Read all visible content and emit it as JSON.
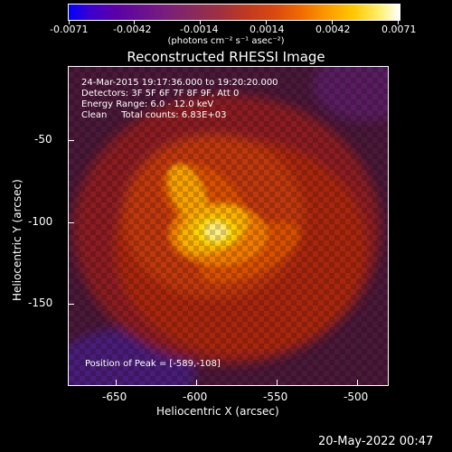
{
  "colorbar": {
    "tick_labels": [
      "-0.0071",
      "-0.0042",
      "-0.0014",
      "0.0014",
      "0.0042",
      "0.0071"
    ],
    "units_label": "(photons cm⁻² s⁻¹ asec⁻²)"
  },
  "title": "Reconstructed RHESSI Image",
  "annotations": {
    "time": "24-Mar-2015 19:17:36.000 to 19:20:20.000",
    "detectors": "Detectors: 3F 5F 6F 7F 8F 9F, Att 0",
    "energy": "Energy Range: 6.0 - 12.0 keV",
    "clean": "Clean     Total counts: 6.83E+03",
    "peak": "Position of Peak = [-589,-108]"
  },
  "x_axis": {
    "label": "Heliocentric X (arcsec)",
    "ticks": [
      "-650",
      "-600",
      "-550",
      "-500"
    ]
  },
  "y_axis": {
    "label": "Heliocentric Y (arcsec)",
    "ticks": [
      "-50",
      "-100",
      "-150"
    ]
  },
  "footer_timestamp": "20-May-2022 00:47"
}
